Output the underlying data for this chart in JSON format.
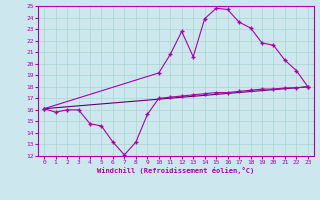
{
  "xlabel": "Windchill (Refroidissement éolien,°C)",
  "bg_color": "#cce8ee",
  "grid_color": "#aad4cc",
  "line_color": "#aa00aa",
  "line_color2": "#660066",
  "xlim": [
    -0.5,
    23.5
  ],
  "ylim": [
    12,
    25
  ],
  "xticks": [
    0,
    1,
    2,
    3,
    4,
    5,
    6,
    7,
    8,
    9,
    10,
    11,
    12,
    13,
    14,
    15,
    16,
    17,
    18,
    19,
    20,
    21,
    22,
    23
  ],
  "yticks": [
    12,
    13,
    14,
    15,
    16,
    17,
    18,
    19,
    20,
    21,
    22,
    23,
    24,
    25
  ],
  "line1_x": [
    0,
    1,
    2,
    3,
    4,
    5,
    6,
    7,
    8,
    9,
    10,
    11,
    12,
    13,
    14,
    15,
    16,
    17,
    18,
    19,
    20,
    21,
    22,
    23
  ],
  "line1_y": [
    16.1,
    15.8,
    16.0,
    16.0,
    14.8,
    14.6,
    13.2,
    12.1,
    13.2,
    15.6,
    17.0,
    17.1,
    17.2,
    17.3,
    17.4,
    17.5,
    17.5,
    17.6,
    17.7,
    17.8,
    17.8,
    17.9,
    17.9,
    18.0
  ],
  "line2_x": [
    0,
    10,
    11,
    12,
    13,
    14,
    15,
    16,
    17,
    18,
    19,
    20,
    21,
    22,
    23
  ],
  "line2_y": [
    16.1,
    19.2,
    20.8,
    22.8,
    20.6,
    23.9,
    24.8,
    24.7,
    23.6,
    23.1,
    21.8,
    21.6,
    20.3,
    19.4,
    18.0
  ],
  "line3_x": [
    0,
    23
  ],
  "line3_y": [
    16.1,
    18.0
  ]
}
